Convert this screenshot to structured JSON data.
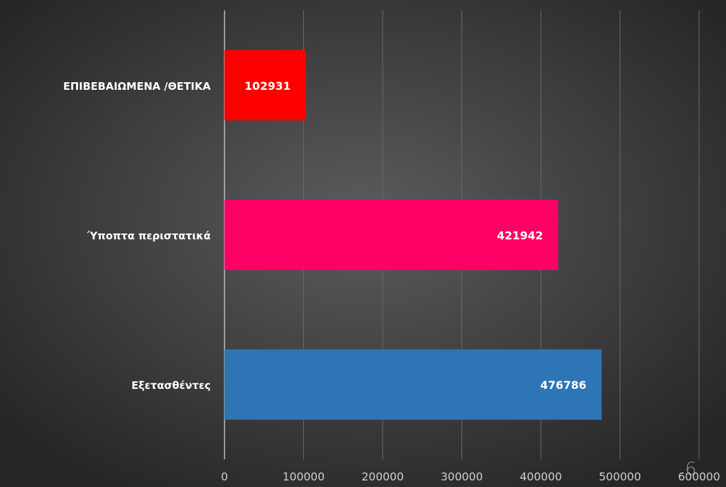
{
  "chart_data": {
    "type": "barh",
    "categories": [
      "ΕΠΙΒΕΒΑΙΩΜΕΝΑ /ΘΕΤΙΚΑ",
      "Ύποπτα περιστατικά",
      "Εξετασθέντες"
    ],
    "values": [
      102931,
      421942,
      476786
    ],
    "colors": [
      "#ff0000",
      "#ff0066",
      "#2e75b6"
    ],
    "xlim": [
      0,
      600000
    ],
    "xticks": [
      0,
      100000,
      200000,
      300000,
      400000,
      500000,
      600000
    ],
    "grid": true
  },
  "slide_number": "6"
}
